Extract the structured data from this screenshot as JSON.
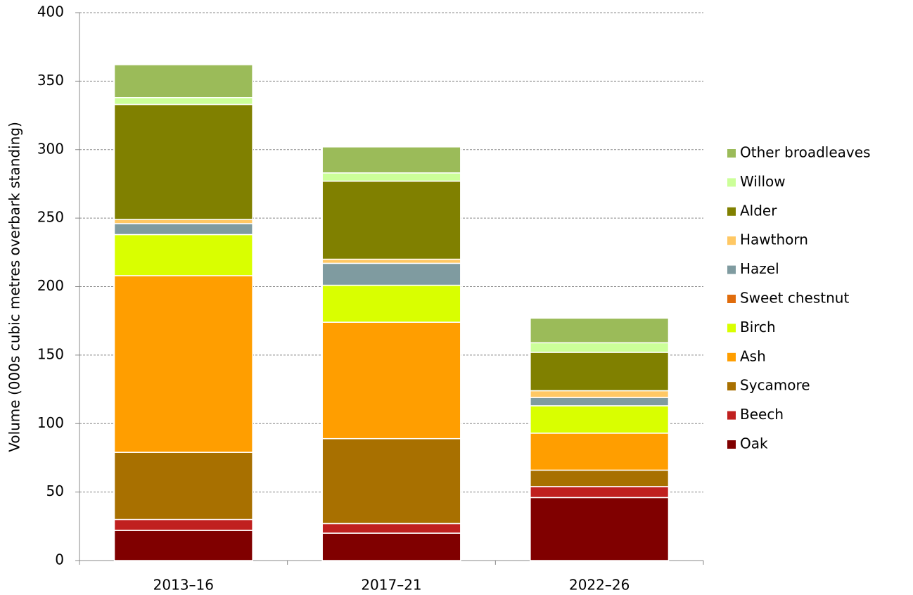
{
  "chart_data": {
    "type": "stacked-bar",
    "y_label": "Volume (000s cubic metres overbark standing)",
    "categories": [
      "2013–16",
      "2017–21",
      "2022–26"
    ],
    "ylim": [
      0,
      400
    ],
    "yticks": [
      0,
      50,
      100,
      150,
      200,
      250,
      300,
      350,
      400
    ],
    "grid": true,
    "legend": "right",
    "series": [
      {
        "name": "Oak",
        "color": "#800000",
        "values": [
          22,
          20,
          46
        ]
      },
      {
        "name": "Beech",
        "color": "#c0201f",
        "values": [
          8,
          7,
          8
        ]
      },
      {
        "name": "Sycamore",
        "color": "#a87000",
        "values": [
          49,
          62,
          12
        ]
      },
      {
        "name": "Ash",
        "color": "#ff9e00",
        "values": [
          129,
          85,
          27
        ]
      },
      {
        "name": "Birch",
        "color": "#d9ff00",
        "values": [
          30,
          27,
          20
        ]
      },
      {
        "name": "Sweet chestnut",
        "color": "#e06c0c",
        "values": [
          0,
          0,
          0
        ]
      },
      {
        "name": "Hazel",
        "color": "#7f9ba0",
        "values": [
          8,
          16,
          6
        ]
      },
      {
        "name": "Hawthorn",
        "color": "#ffc864",
        "values": [
          3,
          3,
          5
        ]
      },
      {
        "name": "Alder",
        "color": "#808000",
        "values": [
          84,
          57,
          28
        ]
      },
      {
        "name": "Willow",
        "color": "#ccff99",
        "values": [
          5,
          6,
          7
        ]
      },
      {
        "name": "Other broadleaves",
        "color": "#9bbb59",
        "values": [
          24,
          19,
          18
        ]
      }
    ]
  }
}
